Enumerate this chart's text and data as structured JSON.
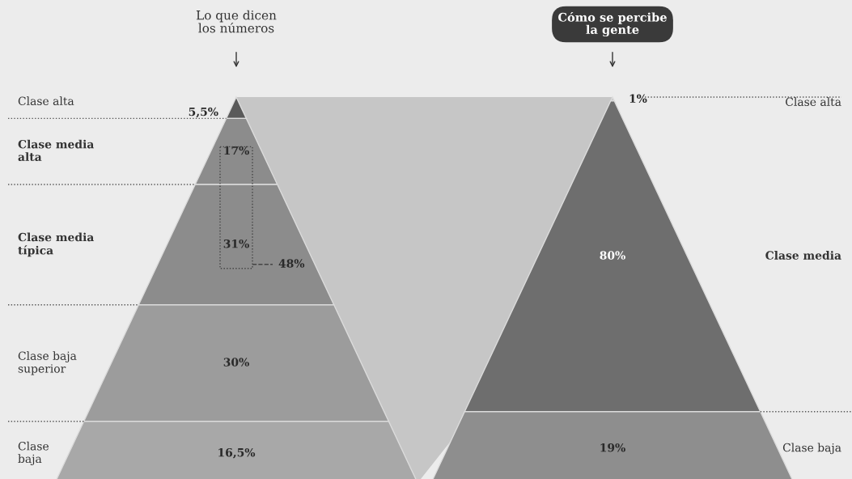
{
  "chart_data": [
    {
      "type": "other",
      "title": "Lo que dicen\nlos números",
      "categories": [
        "Clase alta",
        "Clase media\nalta",
        "Clase media\ntípica",
        "Clase baja\nsuperior",
        "Clase\nbaja"
      ],
      "values": [
        5.5,
        17,
        31,
        30,
        16.5
      ],
      "value_labels": [
        "5,5%",
        "17%",
        "31%",
        "30%",
        "16,5%"
      ],
      "colors": [
        "#5a5a5a",
        "#8c8c8c",
        "#8c8c8c",
        "#9c9c9c",
        "#a8a8a8"
      ],
      "annotations": [
        "48%"
      ]
    },
    {
      "type": "other",
      "title": "Cómo se percibe\nla gente",
      "categories": [
        "Clase alta",
        "Clase media",
        "Clase baja"
      ],
      "values": [
        1,
        80,
        19
      ],
      "value_labels": [
        "1%",
        "80%",
        "19%"
      ],
      "colors": [
        "#c4c4c4",
        "#6e6e6e",
        "#8e8e8e"
      ]
    }
  ]
}
